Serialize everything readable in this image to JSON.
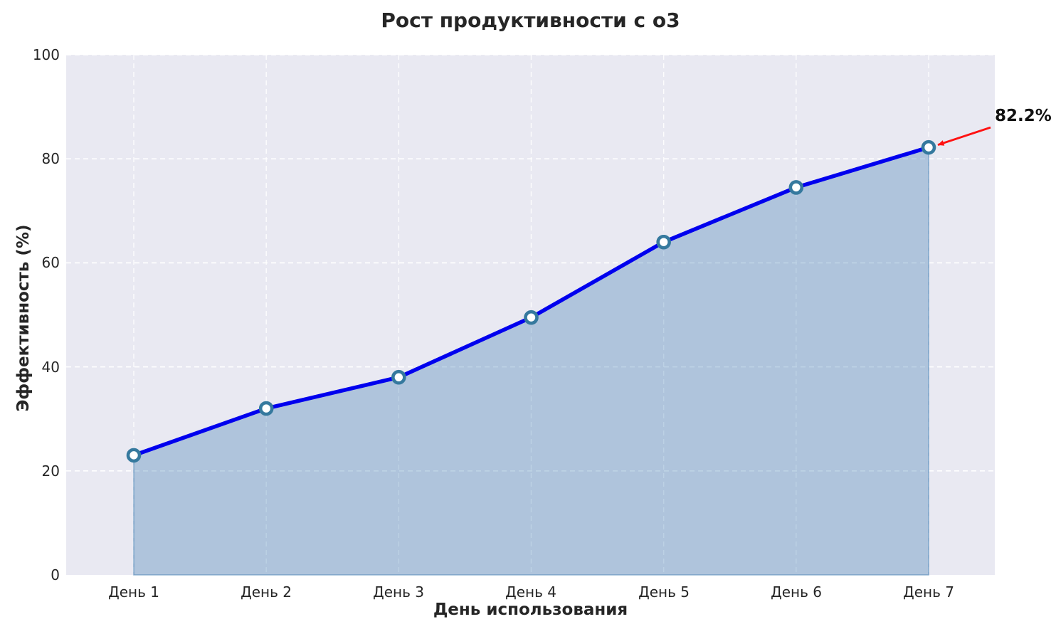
{
  "chart_data": {
    "type": "line",
    "title": "Рост продуктивности с o3",
    "xlabel": "День использования",
    "ylabel": "Эффективность (%)",
    "categories": [
      "День 1",
      "День 2",
      "День 3",
      "День 4",
      "День 5",
      "День 6",
      "День 7"
    ],
    "values": [
      23,
      32,
      38,
      49.5,
      64,
      74.5,
      82.2
    ],
    "ylim": [
      0,
      100
    ],
    "yticks": [
      0,
      20,
      40,
      60,
      80,
      100
    ],
    "grid": true,
    "grid_style": "dashed",
    "legend": null,
    "area_fill": true,
    "annotation": {
      "text": "82.2%",
      "target_category": "День 7",
      "target_value": 82.2
    },
    "colors": {
      "line": "#0000ee",
      "marker_edge": "#35799e",
      "marker_face": "#ffffff",
      "fill": "#4682b4",
      "fill_opacity": 0.35,
      "fill_edge_opacity": 0.55,
      "plot_bg": "#e9e9f2",
      "figure_bg": "#ffffff",
      "grid": "#ffffff",
      "arrow": "#ff1111",
      "text": "#262626"
    }
  }
}
